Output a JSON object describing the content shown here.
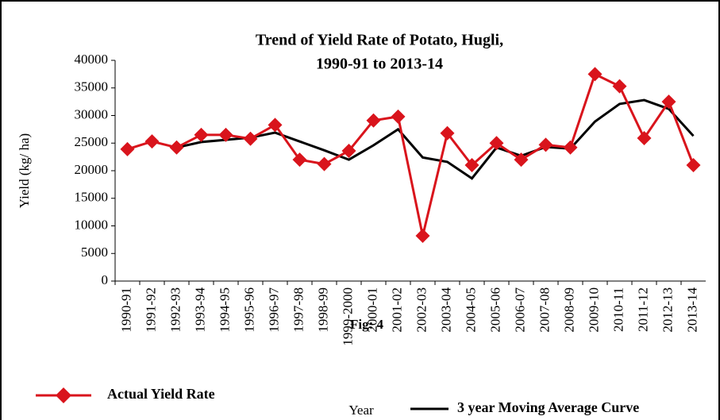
{
  "chart_data": {
    "type": "line",
    "title_lines": [
      "Trend of  Yield Rate of Potato, Hugli,",
      "1990-91 to 2013-14"
    ],
    "ylabel": "Yield (kg/ ha)",
    "xlabel": "Year",
    "annotation": "Fig: 4",
    "categories": [
      "1990-91",
      "1991-92",
      "1992-93",
      "1993-94",
      "1994-95",
      "1995-96",
      "1996-97",
      "1997-98",
      "1998-99",
      "1999-2000",
      "2000-01",
      "2001-02",
      "2002-03",
      "2003-04",
      "2004-05",
      "2005-06",
      "2006-07",
      "2007-08",
      "2008-09",
      "2009-10",
      "2010-11",
      "2011-12",
      "2012-13",
      "2013-14"
    ],
    "series": [
      {
        "name": "Actual Yield Rate",
        "color": "#d9141c",
        "marker": "diamond",
        "values": [
          23900,
          25300,
          24200,
          26500,
          26500,
          25800,
          28300,
          22000,
          21200,
          23600,
          29100,
          29800,
          8200,
          26800,
          21000,
          25000,
          22000,
          24700,
          24200,
          37500,
          35300,
          25900,
          32500,
          21000
        ]
      },
      {
        "name": "3 year Moving Average Curve",
        "color": "#000000",
        "marker": null,
        "values": [
          null,
          null,
          24200,
          25200,
          25600,
          26000,
          26900,
          25300,
          23700,
          22000,
          24600,
          27500,
          22400,
          21600,
          18600,
          24200,
          22700,
          24300,
          24000,
          28900,
          32100,
          32800,
          31200,
          26300
        ]
      }
    ],
    "ylim": [
      0,
      40000
    ],
    "yticks": [
      0,
      5000,
      10000,
      15000,
      20000,
      25000,
      30000,
      35000,
      40000
    ],
    "grid": false
  }
}
